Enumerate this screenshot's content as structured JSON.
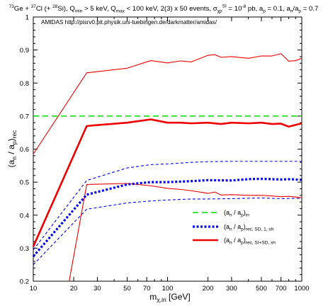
{
  "chart_data": {
    "type": "line",
    "title": "73Ge + 37Cl (+ 28Si), Qmin > 5 keV, Qmax < 100 keV, 2(3) x 50 events, σχpSI = 10-8 pb, ap = 0.1, an/ap = 0.7",
    "title_parts": {
      "ge_mass": "73",
      "ge_symbol": "Ge + ",
      "cl_mass": "37",
      "cl_symbol": "Cl (+ ",
      "si_mass": "28",
      "si_symbol": "Si), Q",
      "qmin_sub": "min",
      "qmin_text": " > 5 keV, Q",
      "qmax_sub": "max",
      "qmax_text": " < 100 keV, 2(3) x 50 events, σ",
      "sigma_sub": "χp",
      "sigma_sup": "SI",
      "sigma_text": " = 10",
      "exp_sup": "-8",
      "tail_text": " pb, a",
      "ap_sub": "p",
      "ap_text": " = 0.1, a",
      "an_sub": "n",
      "ratio_text": "/a",
      "ratio_sub": "p",
      "ratio_val": " = 0.7"
    },
    "annotation": "AMIDAS   http://pisrv0.pit.physik.uni-tuebingen.de/darkmatter/amidas/",
    "xlabel": {
      "main": "m",
      "sub": "χ,in",
      "unit": " [GeV]"
    },
    "ylabel": {
      "open": "(a",
      "sub1": "n",
      "mid": " / a",
      "sub2": "p",
      "close": ")",
      "sub3": "rec"
    },
    "xscale": "log",
    "xlim": [
      10,
      1000
    ],
    "ylim": [
      0.2,
      1.0
    ],
    "xticks": [
      10,
      20,
      30,
      50,
      70,
      100,
      200,
      300,
      500,
      700,
      1000
    ],
    "xtick_labels": [
      "10",
      "20",
      "30",
      "50",
      "70",
      "100",
      "200",
      "300",
      "500",
      "700",
      "1000"
    ],
    "yticks": [
      0.2,
      0.3,
      0.4,
      0.5,
      0.6,
      0.7,
      0.8,
      0.9,
      1.0
    ],
    "ytick_labels": [
      "0.2",
      "0.3",
      "0.4",
      "0.5",
      "0.6",
      "0.7",
      "0.8",
      "0.9",
      "1"
    ],
    "legend_position": "lower-right",
    "legend": [
      {
        "main": "(a",
        "s1": "n",
        "mid": " / a",
        "s2": "p",
        "close": ")",
        "sub": "in",
        "color": "#00dd00",
        "dash": "8,5",
        "width": 1.6
      },
      {
        "main": "(a",
        "s1": "n",
        "mid": " / a",
        "s2": "p",
        "close": ")",
        "sub": "rec, SD, 1, sh",
        "color": "#0000ee",
        "dash": "3,2.5",
        "width": 3.2
      },
      {
        "main": "(a",
        "s1": "n",
        "mid": " / a",
        "s2": "p",
        "close": ")",
        "sub": "rec, SI+SD, sh",
        "color": "#ee0000",
        "dash": "",
        "width": 2.6
      }
    ],
    "input_value": 0.7,
    "series": [
      {
        "color": "#ee0000",
        "width": 2.6,
        "dash": "",
        "x": [
          10,
          25,
          50,
          75,
          100,
          125,
          150,
          200,
          250,
          300,
          400,
          500,
          600,
          700,
          800,
          1000
        ],
        "y": [
          0.305,
          0.67,
          0.68,
          0.69,
          0.68,
          0.68,
          0.678,
          0.68,
          0.676,
          0.68,
          0.678,
          0.68,
          0.676,
          0.677,
          0.668,
          0.678
        ]
      },
      {
        "color": "#ee0000",
        "width": 1.1,
        "dash": "",
        "x": [
          10,
          25,
          50,
          75,
          100,
          125,
          150,
          200,
          225,
          250,
          300,
          400,
          500,
          600,
          700,
          800,
          900,
          1000
        ],
        "y": [
          0.585,
          0.831,
          0.845,
          0.868,
          0.861,
          0.867,
          0.864,
          0.884,
          0.886,
          0.878,
          0.88,
          0.875,
          0.882,
          0.882,
          0.889,
          0.866,
          0.868,
          0.875
        ]
      },
      {
        "color": "#ee0000",
        "width": 1.1,
        "dash": "",
        "x": [
          18.5,
          25,
          50,
          75,
          100,
          125,
          150,
          200,
          225,
          250,
          300,
          400,
          500,
          600,
          700,
          800,
          1000
        ],
        "y": [
          0.2,
          0.493,
          0.496,
          0.489,
          0.481,
          0.478,
          0.474,
          0.466,
          0.47,
          0.461,
          0.462,
          0.46,
          0.46,
          0.458,
          0.456,
          0.457,
          0.453
        ]
      },
      {
        "color": "#0000ee",
        "width": 3.2,
        "dash": "3,2.5",
        "x": [
          10,
          25,
          50,
          75,
          100,
          150,
          200,
          300,
          400,
          500,
          700,
          800,
          1000
        ],
        "y": [
          0.275,
          0.462,
          0.493,
          0.5,
          0.5,
          0.503,
          0.506,
          0.505,
          0.509,
          0.51,
          0.508,
          0.509,
          0.507
        ]
      },
      {
        "color": "#0000ee",
        "width": 1.1,
        "dash": "4,3",
        "x": [
          10,
          25,
          50,
          75,
          100,
          150,
          200,
          300,
          500,
          700,
          1000
        ],
        "y": [
          0.295,
          0.505,
          0.543,
          0.553,
          0.555,
          0.56,
          0.562,
          0.563,
          0.563,
          0.563,
          0.563
        ]
      },
      {
        "color": "#0000ee",
        "width": 1.1,
        "dash": "4,3",
        "x": [
          10,
          25,
          50,
          75,
          100,
          150,
          200,
          300,
          500,
          700,
          1000
        ],
        "y": [
          0.25,
          0.418,
          0.437,
          0.443,
          0.446,
          0.449,
          0.449,
          0.45,
          0.452,
          0.45,
          0.451
        ]
      }
    ]
  }
}
